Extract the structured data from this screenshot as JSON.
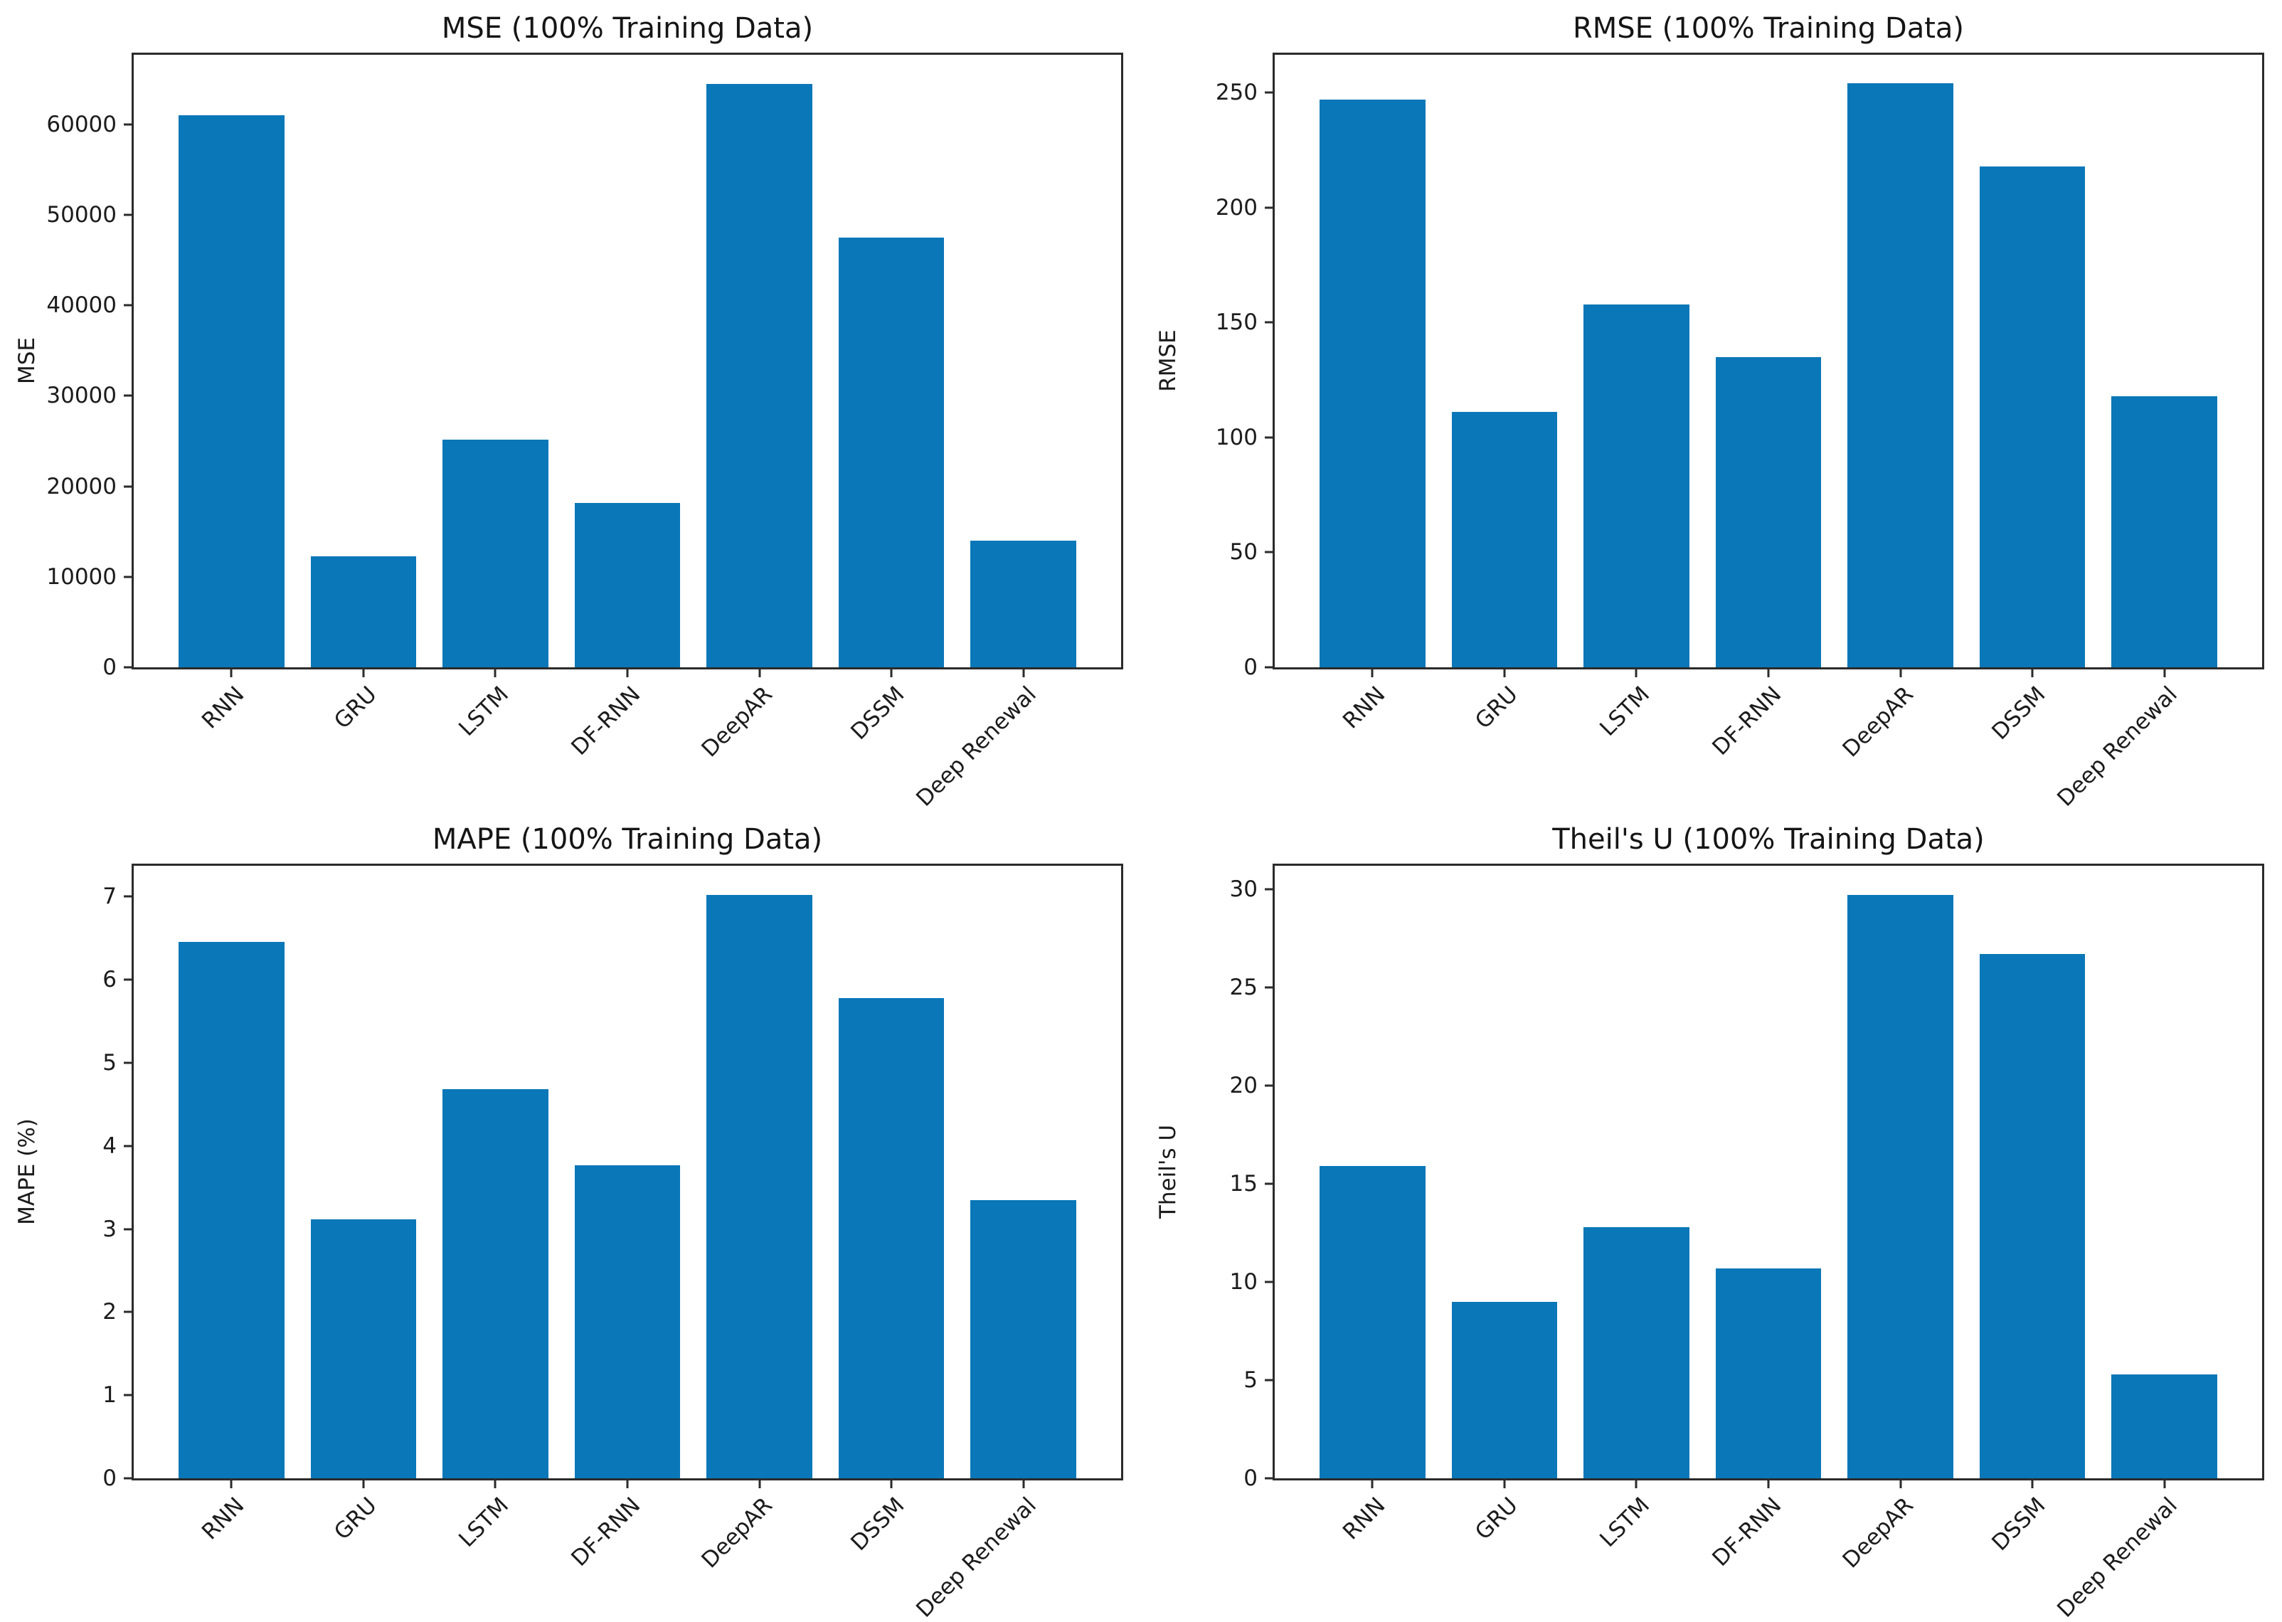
{
  "figure": {
    "background": "#ffffff",
    "bar_color": "#0a77b8",
    "axis_color": "#2b2b2b",
    "text_color": "#1c1c1c"
  },
  "chart_data": [
    {
      "type": "bar",
      "title": "MSE (100% Training Data)",
      "xlabel": "",
      "ylabel": "MSE",
      "categories": [
        "RNN",
        "GRU",
        "LSTM",
        "DF-RNN",
        "DeepAR",
        "DSSM",
        "Deep Renewal"
      ],
      "values": [
        61000,
        12300,
        25200,
        18200,
        64500,
        47500,
        14000
      ],
      "ylim": [
        0,
        67700
      ],
      "yticks": [
        0,
        10000,
        20000,
        30000,
        40000,
        50000,
        60000
      ],
      "grid": false,
      "legend": null,
      "x_tick_rotation_deg": 45
    },
    {
      "type": "bar",
      "title": "RMSE (100% Training Data)",
      "xlabel": "",
      "ylabel": "RMSE",
      "categories": [
        "RNN",
        "GRU",
        "LSTM",
        "DF-RNN",
        "DeepAR",
        "DSSM",
        "Deep Renewal"
      ],
      "values": [
        247,
        111,
        158,
        135,
        254,
        218,
        118
      ],
      "ylim": [
        0,
        266.5
      ],
      "yticks": [
        0,
        50,
        100,
        150,
        200,
        250
      ],
      "grid": false,
      "legend": null,
      "x_tick_rotation_deg": 45
    },
    {
      "type": "bar",
      "title": "MAPE (100% Training Data)",
      "xlabel": "",
      "ylabel": "MAPE (%)",
      "categories": [
        "RNN",
        "GRU",
        "LSTM",
        "DF-RNN",
        "DeepAR",
        "DSSM",
        "Deep Renewal"
      ],
      "values": [
        6.45,
        3.12,
        4.68,
        3.77,
        7.02,
        5.78,
        3.35
      ],
      "ylim": [
        0,
        7.37
      ],
      "yticks": [
        0,
        1,
        2,
        3,
        4,
        5,
        6,
        7
      ],
      "grid": false,
      "legend": null,
      "x_tick_rotation_deg": 45
    },
    {
      "type": "bar",
      "title": "Theil's U (100% Training Data)",
      "xlabel": "",
      "ylabel": "Theil's U",
      "categories": [
        "RNN",
        "GRU",
        "LSTM",
        "DF-RNN",
        "DeepAR",
        "DSSM",
        "Deep Renewal"
      ],
      "values": [
        15.9,
        9.0,
        12.8,
        10.7,
        29.7,
        26.7,
        5.3
      ],
      "ylim": [
        0,
        31.2
      ],
      "yticks": [
        0,
        5,
        10,
        15,
        20,
        25,
        30
      ],
      "grid": false,
      "legend": null,
      "x_tick_rotation_deg": 45
    }
  ]
}
